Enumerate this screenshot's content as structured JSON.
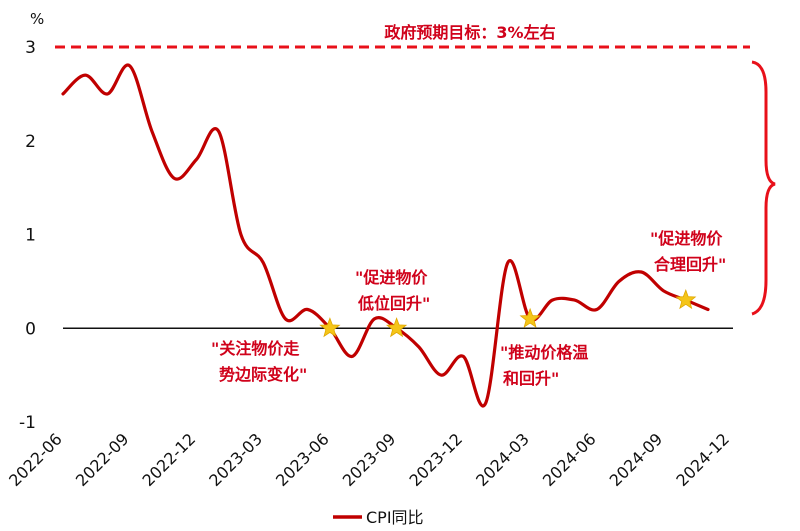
{
  "chart_data": {
    "type": "line",
    "unit_label": "%",
    "x": [
      "2022-06",
      "2022-07",
      "2022-08",
      "2022-09",
      "2022-10",
      "2022-11",
      "2022-12",
      "2023-01",
      "2023-02",
      "2023-03",
      "2023-04",
      "2023-05",
      "2023-06",
      "2023-07",
      "2023-08",
      "2023-09",
      "2023-10",
      "2023-11",
      "2023-12",
      "2024-01",
      "2024-02",
      "2024-03",
      "2024-04",
      "2024-05",
      "2024-06",
      "2024-07",
      "2024-08",
      "2024-09",
      "2024-10",
      "2024-11"
    ],
    "xticks": [
      "2022-06",
      "2022-09",
      "2022-12",
      "2023-03",
      "2023-06",
      "2023-09",
      "2023-12",
      "2024-03",
      "2024-06",
      "2024-09",
      "2024-12"
    ],
    "yticks": [
      -1,
      0,
      1,
      2,
      3
    ],
    "ylim": [
      -1,
      3
    ],
    "series": [
      {
        "name": "CPI同比",
        "color": "#c00000",
        "values": [
          2.5,
          2.7,
          2.5,
          2.8,
          2.1,
          1.6,
          1.8,
          2.1,
          1.0,
          0.7,
          0.1,
          0.2,
          0.0,
          -0.3,
          0.1,
          0.0,
          -0.2,
          -0.5,
          -0.3,
          -0.8,
          0.7,
          0.1,
          0.3,
          0.3,
          0.2,
          0.5,
          0.6,
          0.4,
          0.3,
          0.2
        ]
      }
    ],
    "target_line": {
      "value": 3,
      "label": "政府预期目标：3%左右",
      "color": "#e8101a"
    },
    "zero_line": 0,
    "stars": [
      {
        "x": "2023-06",
        "y": 0.0
      },
      {
        "x": "2023-09",
        "y": 0.0
      },
      {
        "x": "2024-03",
        "y": 0.1
      },
      {
        "x": "2024-10",
        "y": 0.3
      }
    ],
    "annotations": [
      {
        "id": "ann-1",
        "lines": [
          "\"关注物价走",
          "势边际变化\""
        ]
      },
      {
        "id": "ann-2",
        "lines": [
          "\"促进物价",
          "低位回升\""
        ]
      },
      {
        "id": "ann-3",
        "lines": [
          "\"推动价格温",
          "和回升\""
        ]
      },
      {
        "id": "ann-4",
        "lines": [
          "\"促进物价",
          "合理回升\""
        ]
      }
    ],
    "legend": {
      "label": "CPI同比",
      "position": "bottom-center"
    },
    "grid": false
  }
}
